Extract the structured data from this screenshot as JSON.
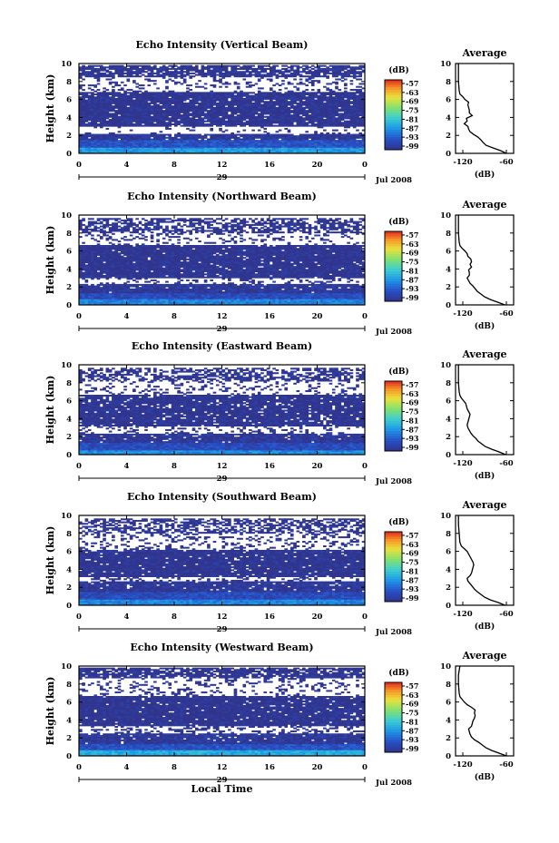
{
  "chart_data": [
    {
      "type": "heatmap",
      "title": "Echo Intensity (Vertical Beam)",
      "ylabel": "Height (km)",
      "xlim": [
        0,
        24
      ],
      "ylim": [
        0,
        10
      ],
      "x_ticks": [
        "0",
        "4",
        "8",
        "12",
        "16",
        "20",
        "0"
      ],
      "y_ticks": [
        "0",
        "2",
        "4",
        "6",
        "8",
        "10"
      ],
      "date_day": "29",
      "date_label": "Jul 2008",
      "colorbar": {
        "unit": "(dB)",
        "ticks": [
          "-57",
          "-63",
          "-69",
          "-75",
          "-81",
          "-87",
          "-93",
          "-99"
        ],
        "range": [
          -99,
          -57
        ]
      },
      "layers": [
        {
          "from": 0.0,
          "to": 0.6,
          "value": -86,
          "density": 1.0
        },
        {
          "from": 0.6,
          "to": 1.5,
          "value": -93,
          "density": 1.0
        },
        {
          "from": 1.5,
          "to": 2.2,
          "value": -98,
          "density": 0.95
        },
        {
          "from": 2.2,
          "to": 3.0,
          "value": -99,
          "density": 0.15
        },
        {
          "from": 3.0,
          "to": 6.8,
          "value": -99,
          "density": 0.95
        },
        {
          "from": 6.8,
          "to": 8.5,
          "value": -99,
          "density": 0.25
        },
        {
          "from": 8.5,
          "to": 9.8,
          "value": -99,
          "density": 0.8
        }
      ],
      "average_profile": {
        "title": "Average",
        "xlabel": "(dB)",
        "x_ticks": [
          "-120",
          "-60"
        ],
        "y_ticks": [
          "0",
          "2",
          "4",
          "6",
          "8",
          "10"
        ],
        "xlim": [
          -130,
          -50
        ],
        "ylim": [
          0,
          10
        ],
        "height": [
          0.0,
          0.3,
          0.6,
          0.9,
          1.2,
          1.5,
          1.8,
          2.1,
          2.4,
          2.7,
          3.0,
          3.3,
          3.6,
          3.9,
          4.2,
          4.5,
          4.8,
          5.1,
          5.4,
          5.7,
          6.0,
          6.3,
          6.6,
          7.0,
          8.0,
          9.0,
          10.0
        ],
        "value": [
          -60,
          -68,
          -78,
          -88,
          -92,
          -95,
          -99,
          -105,
          -110,
          -112,
          -113,
          -118,
          -114,
          -115,
          -107,
          -111,
          -111,
          -112,
          -113,
          -112,
          -117,
          -120,
          -124,
          -125,
          -126,
          -126,
          -126
        ]
      }
    },
    {
      "type": "heatmap",
      "title": "Echo Intensity (Northward Beam)",
      "ylabel": "Height (km)",
      "xlim": [
        0,
        24
      ],
      "ylim": [
        0,
        10
      ],
      "x_ticks": [
        "0",
        "4",
        "8",
        "12",
        "16",
        "20",
        "0"
      ],
      "y_ticks": [
        "0",
        "2",
        "4",
        "6",
        "8",
        "10"
      ],
      "date_day": "29",
      "date_label": "Jul 2008",
      "colorbar": {
        "unit": "(dB)",
        "ticks": [
          "-57",
          "-63",
          "-69",
          "-75",
          "-81",
          "-87",
          "-93",
          "-99"
        ],
        "range": [
          -99,
          -57
        ]
      },
      "layers": [
        {
          "from": 0.0,
          "to": 0.6,
          "value": -88,
          "density": 1.0
        },
        {
          "from": 0.6,
          "to": 1.4,
          "value": -94,
          "density": 1.0
        },
        {
          "from": 1.4,
          "to": 2.4,
          "value": -98,
          "density": 0.95
        },
        {
          "from": 2.4,
          "to": 3.0,
          "value": -99,
          "density": 0.2
        },
        {
          "from": 3.0,
          "to": 6.6,
          "value": -99,
          "density": 0.95
        },
        {
          "from": 6.6,
          "to": 8.0,
          "value": -99,
          "density": 0.2
        },
        {
          "from": 8.0,
          "to": 9.6,
          "value": -99,
          "density": 0.6
        }
      ],
      "average_profile": {
        "title": "Average",
        "xlabel": "(dB)",
        "x_ticks": [
          "-120",
          "-60"
        ],
        "y_ticks": [
          "0",
          "2",
          "4",
          "6",
          "8",
          "10"
        ],
        "xlim": [
          -130,
          -50
        ],
        "ylim": [
          0,
          10
        ],
        "height": [
          0.0,
          0.3,
          0.6,
          0.9,
          1.2,
          1.5,
          1.8,
          2.1,
          2.4,
          2.7,
          3.0,
          3.3,
          3.6,
          3.9,
          4.2,
          4.5,
          4.8,
          5.1,
          5.4,
          5.7,
          6.0,
          6.3,
          6.6,
          7.0,
          8.0,
          9.0,
          10.0
        ],
        "value": [
          -62,
          -72,
          -82,
          -90,
          -95,
          -100,
          -103,
          -106,
          -110,
          -112,
          -114,
          -111,
          -111,
          -112,
          -108,
          -110,
          -108,
          -109,
          -113,
          -114,
          -117,
          -121,
          -124,
          -125,
          -126,
          -126,
          -126
        ]
      }
    },
    {
      "type": "heatmap",
      "title": "Echo Intensity (Eastward Beam)",
      "ylabel": "Height (km)",
      "xlim": [
        0,
        24
      ],
      "ylim": [
        0,
        10
      ],
      "x_ticks": [
        "0",
        "4",
        "8",
        "12",
        "16",
        "20",
        "0"
      ],
      "y_ticks": [
        "0",
        "2",
        "4",
        "6",
        "8",
        "10"
      ],
      "date_day": "29",
      "date_label": "Jul 2008",
      "colorbar": {
        "unit": "(dB)",
        "ticks": [
          "-57",
          "-63",
          "-69",
          "-75",
          "-81",
          "-87",
          "-93",
          "-99"
        ],
        "range": [
          -99,
          -57
        ]
      },
      "layers": [
        {
          "from": 0.0,
          "to": 0.5,
          "value": -87,
          "density": 1.0
        },
        {
          "from": 0.5,
          "to": 1.3,
          "value": -94,
          "density": 1.0
        },
        {
          "from": 1.3,
          "to": 2.4,
          "value": -98,
          "density": 0.95
        },
        {
          "from": 2.4,
          "to": 3.2,
          "value": -99,
          "density": 0.25
        },
        {
          "from": 3.2,
          "to": 6.6,
          "value": -99,
          "density": 0.9
        },
        {
          "from": 6.6,
          "to": 8.2,
          "value": -99,
          "density": 0.2
        },
        {
          "from": 8.2,
          "to": 9.6,
          "value": -99,
          "density": 0.55
        }
      ],
      "average_profile": {
        "title": "Average",
        "xlabel": "(dB)",
        "x_ticks": [
          "-120",
          "-60"
        ],
        "y_ticks": [
          "0",
          "2",
          "4",
          "6",
          "8",
          "10"
        ],
        "xlim": [
          -130,
          -50
        ],
        "ylim": [
          0,
          10
        ],
        "height": [
          0.0,
          0.3,
          0.6,
          0.9,
          1.2,
          1.5,
          1.8,
          2.1,
          2.4,
          2.7,
          3.0,
          3.3,
          3.6,
          3.9,
          4.2,
          4.5,
          4.8,
          5.1,
          5.4,
          5.7,
          6.0,
          6.3,
          6.6,
          7.0,
          8.0,
          9.0,
          10.0
        ],
        "value": [
          -61,
          -70,
          -80,
          -89,
          -94,
          -99,
          -102,
          -106,
          -109,
          -111,
          -113,
          -114,
          -113,
          -112,
          -111,
          -110,
          -112,
          -114,
          -115,
          -116,
          -119,
          -122,
          -124,
          -125,
          -126,
          -126,
          -126
        ]
      }
    },
    {
      "type": "heatmap",
      "title": "Echo Intensity (Southward Beam)",
      "ylabel": "Height (km)",
      "xlim": [
        0,
        24
      ],
      "ylim": [
        0,
        10
      ],
      "x_ticks": [
        "0",
        "4",
        "8",
        "12",
        "16",
        "20",
        "0"
      ],
      "y_ticks": [
        "0",
        "2",
        "4",
        "6",
        "8",
        "10"
      ],
      "date_day": "29",
      "date_label": "Jul 2008",
      "colorbar": {
        "unit": "(dB)",
        "ticks": [
          "-57",
          "-63",
          "-69",
          "-75",
          "-81",
          "-87",
          "-93",
          "-99"
        ],
        "range": [
          -99,
          -57
        ]
      },
      "layers": [
        {
          "from": 0.0,
          "to": 0.6,
          "value": -88,
          "density": 1.0
        },
        {
          "from": 0.6,
          "to": 1.5,
          "value": -94,
          "density": 1.0
        },
        {
          "from": 1.5,
          "to": 2.6,
          "value": -98,
          "density": 0.95
        },
        {
          "from": 2.6,
          "to": 3.2,
          "value": -99,
          "density": 0.3
        },
        {
          "from": 3.2,
          "to": 6.2,
          "value": -99,
          "density": 0.95
        },
        {
          "from": 6.2,
          "to": 8.0,
          "value": -99,
          "density": 0.25
        },
        {
          "from": 8.0,
          "to": 9.6,
          "value": -99,
          "density": 0.6
        }
      ],
      "average_profile": {
        "title": "Average",
        "xlabel": "(dB)",
        "x_ticks": [
          "-120",
          "-60"
        ],
        "y_ticks": [
          "0",
          "2",
          "4",
          "6",
          "8",
          "10"
        ],
        "xlim": [
          -130,
          -50
        ],
        "ylim": [
          0,
          10
        ],
        "height": [
          0.0,
          0.3,
          0.6,
          0.9,
          1.2,
          1.5,
          1.8,
          2.1,
          2.4,
          2.7,
          3.0,
          3.3,
          3.6,
          3.9,
          4.2,
          4.5,
          4.8,
          5.1,
          5.4,
          5.7,
          6.0,
          6.3,
          6.6,
          7.0,
          8.0,
          9.0,
          10.0
        ],
        "value": [
          -62,
          -71,
          -82,
          -90,
          -95,
          -100,
          -104,
          -107,
          -110,
          -113,
          -114,
          -110,
          -108,
          -107,
          -106,
          -105,
          -106,
          -108,
          -110,
          -112,
          -114,
          -118,
          -122,
          -124,
          -125,
          -126,
          -126
        ]
      }
    },
    {
      "type": "heatmap",
      "title": "Echo Intensity (Westward Beam)",
      "ylabel": "Height (km)",
      "xlim": [
        0,
        24
      ],
      "ylim": [
        0,
        10
      ],
      "x_ticks": [
        "0",
        "4",
        "8",
        "12",
        "16",
        "20",
        "0"
      ],
      "y_ticks": [
        "0",
        "2",
        "4",
        "6",
        "8",
        "10"
      ],
      "date_day": "29",
      "date_label": "Jul 2008",
      "xlabel": "Local Time",
      "colorbar": {
        "unit": "(dB)",
        "ticks": [
          "-57",
          "-63",
          "-69",
          "-75",
          "-81",
          "-87",
          "-93",
          "-99"
        ],
        "range": [
          -99,
          -57
        ]
      },
      "layers": [
        {
          "from": 0.0,
          "to": 0.6,
          "value": -84,
          "density": 1.0
        },
        {
          "from": 0.6,
          "to": 1.4,
          "value": -93,
          "density": 1.0
        },
        {
          "from": 1.4,
          "to": 2.5,
          "value": -98,
          "density": 0.95
        },
        {
          "from": 2.5,
          "to": 3.3,
          "value": -99,
          "density": 0.3
        },
        {
          "from": 3.3,
          "to": 6.6,
          "value": -99,
          "density": 0.95
        },
        {
          "from": 6.6,
          "to": 8.6,
          "value": -99,
          "density": 0.2
        },
        {
          "from": 8.6,
          "to": 9.8,
          "value": -99,
          "density": 0.8
        }
      ],
      "average_profile": {
        "title": "Average",
        "xlabel": "(dB)",
        "x_ticks": [
          "-120",
          "-60"
        ],
        "y_ticks": [
          "0",
          "2",
          "4",
          "6",
          "8",
          "10"
        ],
        "xlim": [
          -130,
          -50
        ],
        "ylim": [
          0,
          10
        ],
        "height": [
          0.0,
          0.3,
          0.6,
          0.9,
          1.2,
          1.5,
          1.8,
          2.1,
          2.4,
          2.7,
          3.0,
          3.3,
          3.6,
          3.9,
          4.2,
          4.5,
          4.8,
          5.1,
          5.4,
          5.7,
          6.0,
          6.3,
          6.6,
          7.0,
          8.0,
          9.0,
          10.0
        ],
        "value": [
          -60,
          -70,
          -80,
          -88,
          -93,
          -98,
          -104,
          -108,
          -110,
          -111,
          -112,
          -108,
          -107,
          -106,
          -104,
          -103,
          -104,
          -103,
          -108,
          -114,
          -118,
          -121,
          -124,
          -125,
          -126,
          -126,
          -124
        ]
      }
    }
  ]
}
